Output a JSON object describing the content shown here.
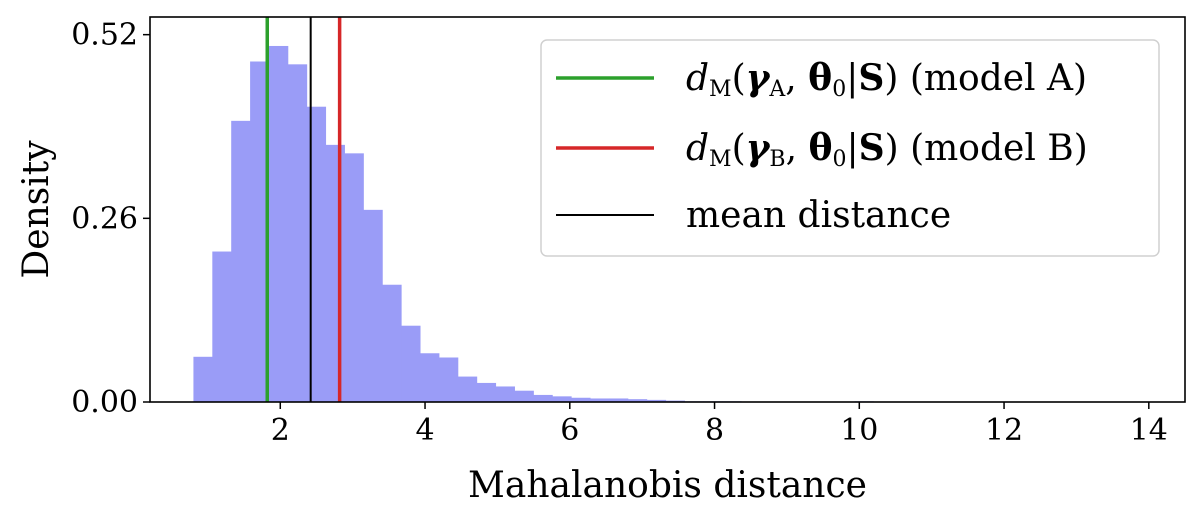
{
  "chart_data": {
    "type": "histogram",
    "xlabel": "Mahalanobis distance",
    "ylabel": "Density",
    "xlim": [
      0.2,
      14.5
    ],
    "ylim": [
      0,
      0.545
    ],
    "xticks": [
      2,
      4,
      6,
      8,
      10,
      12,
      14
    ],
    "yticks": [
      0.0,
      0.26,
      0.52
    ],
    "ytick_labels": [
      "0.00",
      "0.26",
      "0.52"
    ],
    "bar_color": "#9a9cf7",
    "bins": {
      "start": 0.8,
      "width": 0.261,
      "densities": [
        0.064,
        0.213,
        0.398,
        0.482,
        0.504,
        0.478,
        0.418,
        0.364,
        0.352,
        0.272,
        0.166,
        0.108,
        0.069,
        0.063,
        0.036,
        0.027,
        0.022,
        0.016,
        0.01,
        0.008,
        0.006,
        0.005,
        0.005,
        0.004,
        0.003,
        0.002,
        0.001,
        0.001,
        0.001,
        0.0,
        0.0,
        0.0,
        0.0,
        0.0,
        0.0,
        0.001,
        0.0,
        0.0,
        0.0,
        0.0,
        0.0,
        0.0,
        0.0,
        0.0,
        0.0,
        0.0,
        0.0,
        0.0,
        0.0,
        0.0
      ]
    },
    "vlines": [
      {
        "name": "d_M(γ_A, θ_0|S) (model A)",
        "x": 1.82,
        "color": "#2ca02c"
      },
      {
        "name": "mean distance",
        "x": 2.42,
        "color": "#000000"
      },
      {
        "name": "d_M(γ_B, θ_0|S) (model B)",
        "x": 2.82,
        "color": "#d62728"
      }
    ],
    "legend": {
      "position": "upper right",
      "entries": [
        {
          "math": "dM(γA, θ0|S)",
          "label": "(model A)",
          "color": "#2ca02c"
        },
        {
          "math": "dM(γB, θ0|S)",
          "label": "(model B)",
          "color": "#d62728"
        },
        {
          "math": "",
          "label": "mean distance",
          "color": "#000000"
        }
      ]
    }
  }
}
